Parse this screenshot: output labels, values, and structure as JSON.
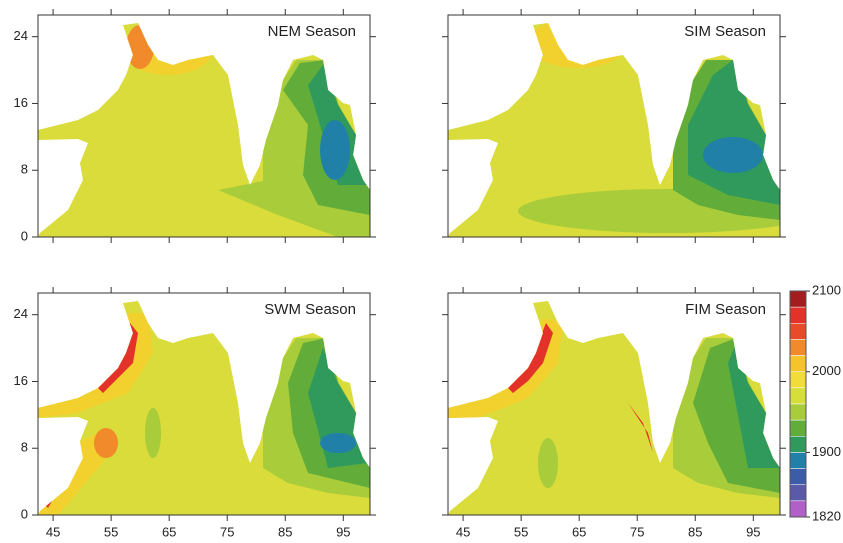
{
  "panels": [
    {
      "title": "NEM Season"
    },
    {
      "title": "SIM Season"
    },
    {
      "title": "SWM Season"
    },
    {
      "title": "FIM Season"
    }
  ],
  "axes": {
    "xlim": [
      42.4,
      99.6
    ],
    "ylim": [
      0,
      26.6
    ],
    "xticks": [
      45,
      55,
      65,
      75,
      85,
      95
    ],
    "yticks": [
      0,
      8,
      16,
      24
    ]
  },
  "colorbar": {
    "lim": [
      1820,
      2100
    ],
    "ticks": [
      2100,
      2000,
      1900,
      1820
    ],
    "colors": [
      "#a31c1e",
      "#e2322a",
      "#e84a2a",
      "#f08a2a",
      "#f5c42a",
      "#f2dc3a",
      "#d6de3a",
      "#a8cc3a",
      "#62ad3a",
      "#2f9a5c",
      "#2080a8",
      "#3c5ca8",
      "#5a5aa8",
      "#b060c8"
    ]
  }
}
